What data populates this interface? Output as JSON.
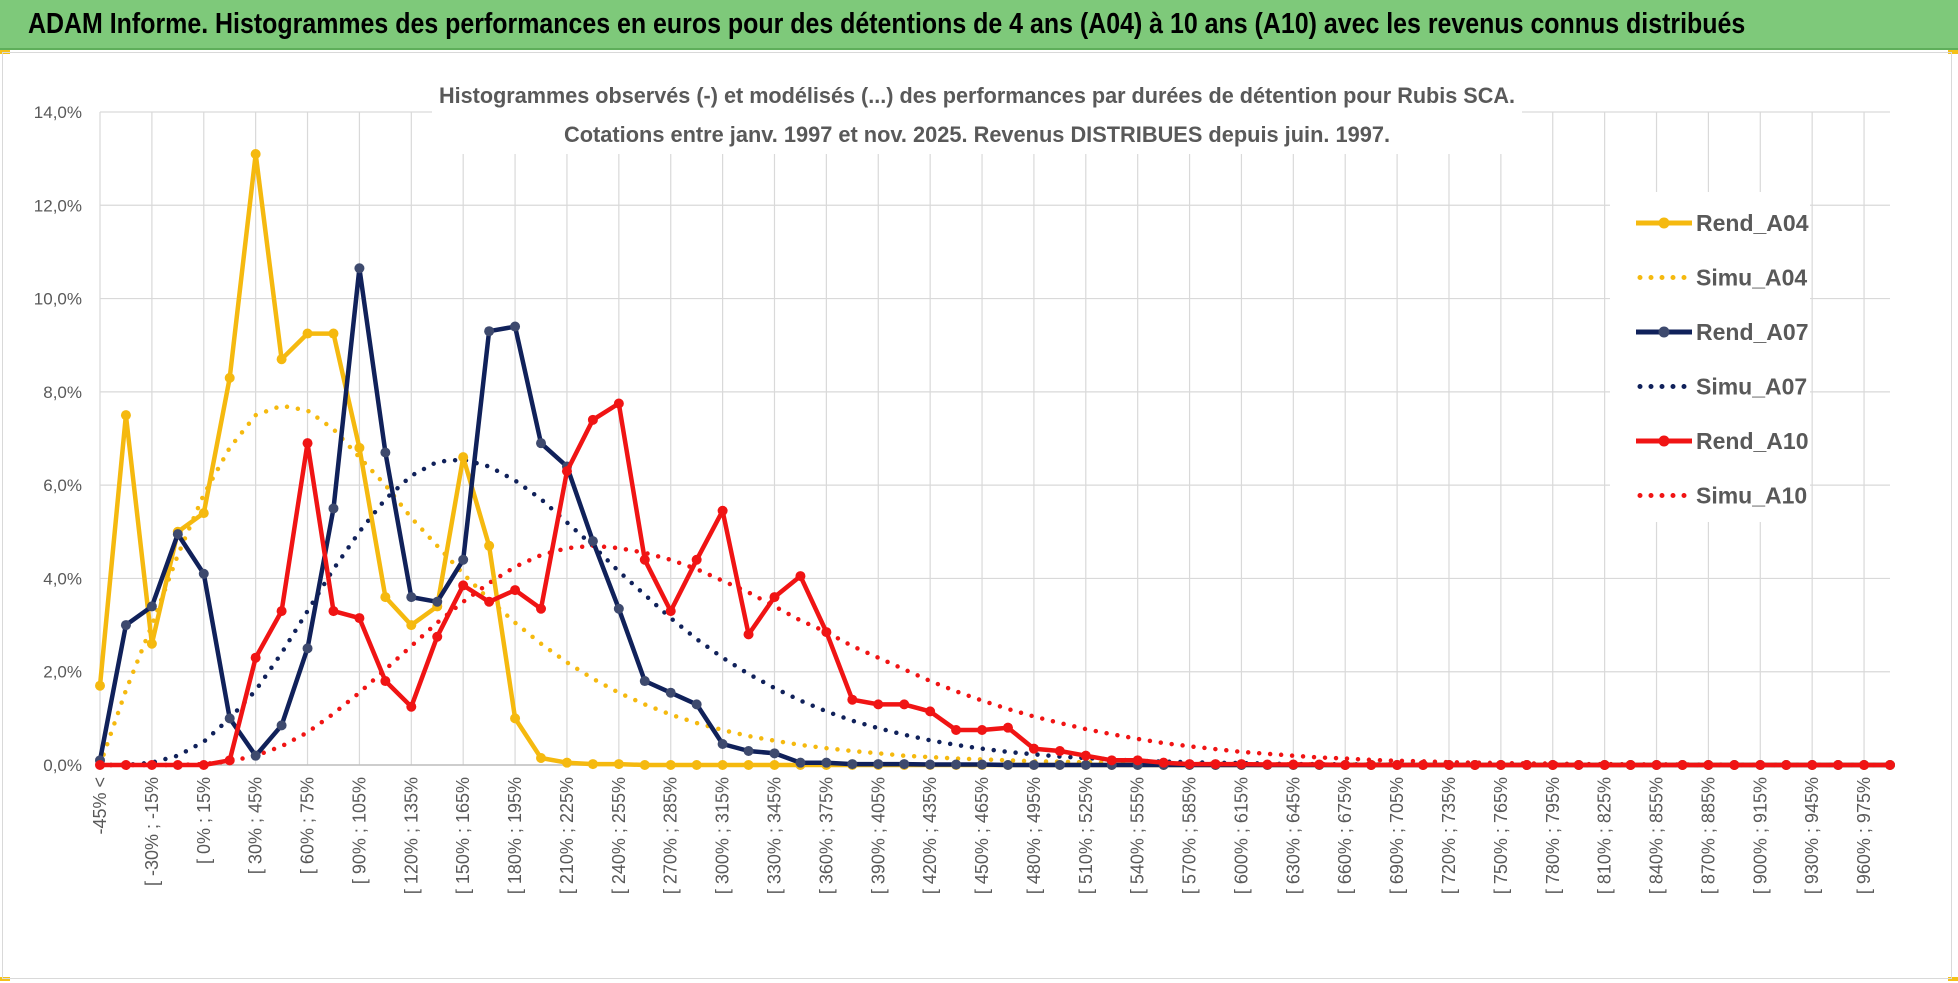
{
  "banner": {
    "title": "ADAM Informe. Histogrammes des performances en euros pour des détentions de 4 ans (A04) à 10 ans (A10) avec les revenus connus distribués"
  },
  "colors": {
    "banner_bg": "#7ec97a",
    "A04": "#f5b90f",
    "A07": "#10215a",
    "A10": "#f01414",
    "grid": "#d9d9d9",
    "axis_text": "#595959"
  },
  "chart_data": {
    "type": "line",
    "title_line1": "Histogrammes observés (-) et modélisés (...) des performances par durées de détention pour Rubis SCA.",
    "title_line2": "Cotations entre janv. 1997 et nov. 2025. Revenus DISTRIBUES depuis juin. 1997.",
    "xlabel": "",
    "ylabel": "",
    "ylim": [
      0,
      14
    ],
    "y_ticks": [
      "0,0%",
      "2,0%",
      "4,0%",
      "6,0%",
      "8,0%",
      "10,0%",
      "12,0%",
      "14,0%"
    ],
    "x_tick_labels": [
      "-45% <",
      "[ -30% ; -15%",
      "[ 0% ; 15%",
      "[ 30% ; 45%",
      "[ 60% ; 75%",
      "[ 90% ; 105%",
      "[ 120% ; 135%",
      "[ 150% ; 165%",
      "[ 180% ; 195%",
      "[ 210% ; 225%",
      "[ 240% ; 255%",
      "[ 270% ; 285%",
      "[ 300% ; 315%",
      "[ 330% ; 345%",
      "[ 360% ; 375%",
      "[ 390% ; 405%",
      "[ 420% ; 435%",
      "[ 450% ; 465%",
      "[ 480% ; 495%",
      "[ 510% ; 525%",
      "[ 540% ; 555%",
      "[ 570% ; 585%",
      "[ 600% ; 615%",
      "[ 630% ; 645%",
      "[ 660% ; 675%",
      "[ 690% ; 705%",
      "[ 720% ; 735%",
      "[ 750% ; 765%",
      "[ 780% ; 795%",
      "[ 810% ; 825%",
      "[ 840% ; 855%",
      "[ 870% ; 885%",
      "[ 900% ; 915%",
      "[ 930% ; 945%",
      "[ 960% ; 975%"
    ],
    "legend_position": "right",
    "series": [
      {
        "name": "Rend_A04",
        "style": "solid",
        "color": "#f5b90f",
        "values": [
          1.7,
          7.5,
          2.6,
          5.0,
          5.4,
          8.3,
          13.1,
          8.7,
          9.25,
          9.25,
          6.8,
          3.6,
          3.0,
          3.4,
          6.6,
          4.7,
          1.0,
          0.15,
          0.05,
          0.02,
          0.02,
          0,
          0,
          0,
          0,
          0,
          0,
          0,
          0,
          0,
          0,
          0,
          0,
          0,
          0,
          0,
          0,
          0,
          0,
          0,
          0,
          0,
          0,
          0,
          0,
          0,
          0,
          0,
          0,
          0,
          0,
          0,
          0,
          0,
          0,
          0,
          0,
          0,
          0,
          0,
          0,
          0,
          0,
          0,
          0,
          0,
          0,
          0,
          0,
          0
        ]
      },
      {
        "name": "Simu_A04",
        "style": "dotted",
        "color": "#f5b90f",
        "values": [
          0.0,
          1.6,
          3.0,
          4.5,
          5.8,
          6.8,
          7.5,
          7.7,
          7.6,
          7.2,
          6.6,
          6.0,
          5.3,
          4.7,
          4.1,
          3.55,
          3.05,
          2.6,
          2.2,
          1.85,
          1.55,
          1.3,
          1.08,
          0.9,
          0.75,
          0.62,
          0.52,
          0.43,
          0.36,
          0.3,
          0.25,
          0.2,
          0.17,
          0.14,
          0.12,
          0.1,
          0.08,
          0.07,
          0.06,
          0.05,
          0.04,
          0.035,
          0.03,
          0.025,
          0.02,
          0.017,
          0.014,
          0.012,
          0.01,
          0.008,
          0.007,
          0.006,
          0.005,
          0.004,
          0.003,
          0.003,
          0.002,
          0.002,
          0.002,
          0.001,
          0.001,
          0.001,
          0.001,
          0.001,
          0.001,
          0.001,
          0.0,
          0.0,
          0.0,
          0.0
        ]
      },
      {
        "name": "Rend_A07",
        "style": "solid",
        "color": "#10215a",
        "values": [
          0.1,
          3.0,
          3.4,
          4.95,
          4.1,
          1.0,
          0.2,
          0.85,
          2.5,
          5.5,
          10.65,
          6.7,
          3.6,
          3.5,
          4.4,
          9.3,
          9.4,
          6.9,
          6.4,
          4.8,
          3.35,
          1.8,
          1.55,
          1.3,
          0.45,
          0.3,
          0.25,
          0.05,
          0.05,
          0.02,
          0.02,
          0.02,
          0.01,
          0.01,
          0.01,
          0,
          0,
          0,
          0,
          0,
          0,
          0,
          0,
          0,
          0,
          0,
          0,
          0,
          0,
          0,
          0,
          0,
          0,
          0,
          0,
          0,
          0,
          0,
          0,
          0,
          0,
          0,
          0,
          0,
          0,
          0,
          0,
          0,
          0,
          0
        ]
      },
      {
        "name": "Simu_A07",
        "style": "dotted",
        "color": "#10215a",
        "values": [
          0.0,
          0.0,
          0.05,
          0.2,
          0.5,
          1.0,
          1.6,
          2.4,
          3.3,
          4.2,
          5.0,
          5.7,
          6.2,
          6.5,
          6.55,
          6.4,
          6.1,
          5.7,
          5.2,
          4.7,
          4.15,
          3.65,
          3.15,
          2.7,
          2.3,
          1.95,
          1.65,
          1.38,
          1.15,
          0.95,
          0.79,
          0.65,
          0.53,
          0.43,
          0.35,
          0.28,
          0.23,
          0.18,
          0.15,
          0.12,
          0.09,
          0.07,
          0.06,
          0.05,
          0.04,
          0.03,
          0.02,
          0.02,
          0.015,
          0.01,
          0.01,
          0.007,
          0.005,
          0.004,
          0.003,
          0.002,
          0.002,
          0.001,
          0.001,
          0.001,
          0.001,
          0.0,
          0.0,
          0.0,
          0.0,
          0.0,
          0.0,
          0.0,
          0.0,
          0.0
        ]
      },
      {
        "name": "Rend_A10",
        "style": "solid",
        "color": "#f01414",
        "values": [
          0,
          0,
          0,
          0,
          0,
          0.1,
          2.3,
          3.3,
          6.9,
          3.3,
          3.15,
          1.8,
          1.25,
          2.75,
          3.85,
          3.5,
          3.75,
          3.35,
          6.3,
          7.4,
          7.75,
          4.4,
          3.3,
          4.4,
          5.45,
          2.8,
          3.6,
          4.05,
          2.85,
          1.4,
          1.3,
          1.3,
          1.15,
          0.75,
          0.75,
          0.8,
          0.35,
          0.3,
          0.2,
          0.1,
          0.1,
          0.05,
          0.02,
          0.02,
          0.02,
          0.01,
          0.01,
          0.01,
          0,
          0,
          0,
          0,
          0,
          0,
          0,
          0,
          0,
          0,
          0,
          0,
          0,
          0,
          0,
          0,
          0,
          0,
          0,
          0,
          0,
          0
        ]
      },
      {
        "name": "Simu_A10",
        "style": "dotted",
        "color": "#f01414",
        "values": [
          0.0,
          0.0,
          0.0,
          0.0,
          0.02,
          0.08,
          0.2,
          0.4,
          0.7,
          1.1,
          1.55,
          2.05,
          2.55,
          3.05,
          3.5,
          3.9,
          4.25,
          4.5,
          4.65,
          4.7,
          4.65,
          4.55,
          4.4,
          4.2,
          3.95,
          3.7,
          3.4,
          3.1,
          2.85,
          2.55,
          2.3,
          2.05,
          1.8,
          1.58,
          1.38,
          1.2,
          1.04,
          0.9,
          0.77,
          0.66,
          0.56,
          0.47,
          0.4,
          0.34,
          0.28,
          0.24,
          0.2,
          0.16,
          0.14,
          0.11,
          0.09,
          0.08,
          0.06,
          0.05,
          0.04,
          0.035,
          0.03,
          0.02,
          0.02,
          0.015,
          0.012,
          0.01,
          0.008,
          0.006,
          0.005,
          0.004,
          0.003,
          0.002,
          0.002,
          0.0
        ]
      }
    ]
  }
}
